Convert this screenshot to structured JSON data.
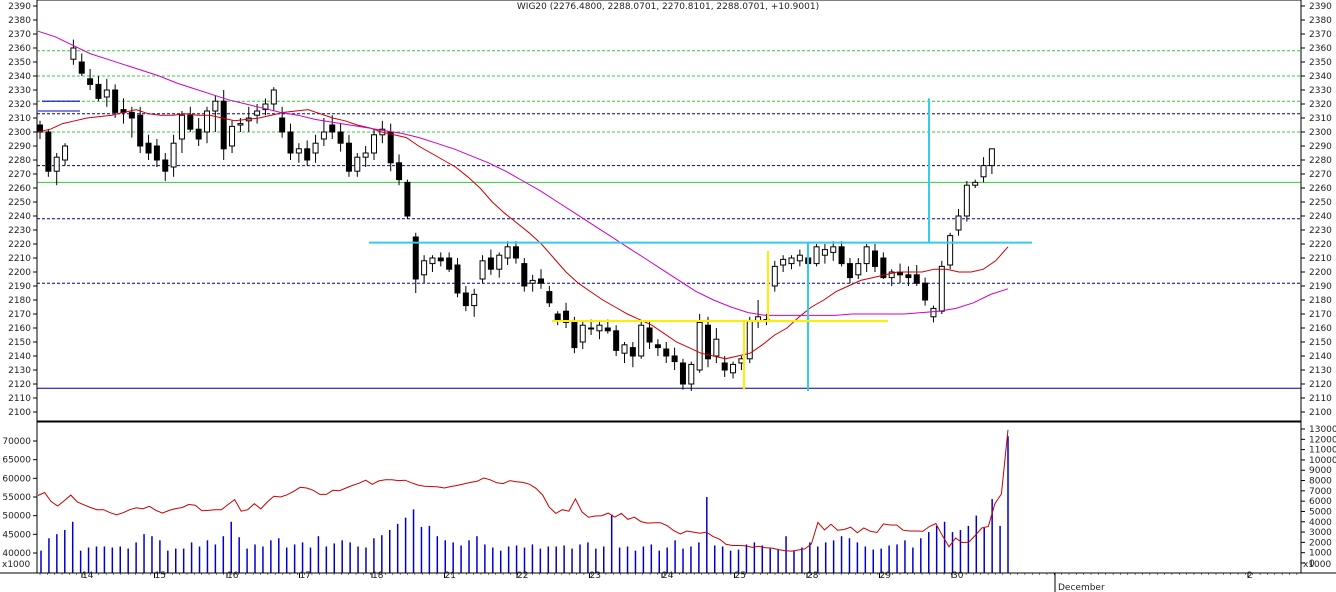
{
  "chart_data": {
    "type": "candlestick",
    "title": "WIG20 (2276.4800, 2288.0701, 2270.8101, 2288.0701, +10.9001)",
    "price_axis": {
      "ylim": [
        2096,
        2392
      ],
      "ticks": [
        2100,
        2110,
        2120,
        2130,
        2140,
        2150,
        2160,
        2170,
        2180,
        2190,
        2200,
        2210,
        2220,
        2230,
        2240,
        2250,
        2260,
        2270,
        2280,
        2290,
        2300,
        2310,
        2320,
        2330,
        2340,
        2350,
        2360,
        2370,
        2380,
        2390
      ]
    },
    "volume_axis_left": {
      "ylim": [
        36000,
        74000
      ],
      "ticks": [
        40000,
        45000,
        50000,
        55000,
        60000,
        65000,
        70000
      ],
      "unit_label": "x1000"
    },
    "volume_axis_right": {
      "ylim": [
        0,
        13500
      ],
      "ticks": [
        0,
        1000,
        2000,
        3000,
        4000,
        5000,
        6000,
        7000,
        8000,
        9000,
        10000,
        11000,
        12000,
        13000
      ],
      "unit_label": "x1000"
    },
    "x_labels": [
      "14",
      "15",
      "16",
      "17",
      "18",
      "21",
      "22",
      "23",
      "24",
      "25",
      "28",
      "29",
      "30",
      "December",
      "2"
    ],
    "candles": [
      [
        2305,
        2308,
        2295,
        2300
      ],
      [
        2300,
        2302,
        2268,
        2272
      ],
      [
        2272,
        2285,
        2262,
        2282
      ],
      [
        2280,
        2292,
        2276,
        2290
      ],
      [
        2352,
        2366,
        2348,
        2360
      ],
      [
        2350,
        2356,
        2340,
        2342
      ],
      [
        2338,
        2345,
        2330,
        2334
      ],
      [
        2334,
        2340,
        2322,
        2324
      ],
      [
        2325,
        2338,
        2318,
        2330
      ],
      [
        2330,
        2334,
        2310,
        2314
      ],
      [
        2316,
        2324,
        2306,
        2314
      ],
      [
        2314,
        2318,
        2296,
        2310
      ],
      [
        2312,
        2318,
        2285,
        2290
      ],
      [
        2292,
        2298,
        2280,
        2285
      ],
      [
        2290,
        2295,
        2275,
        2280
      ],
      [
        2280,
        2285,
        2265,
        2272
      ],
      [
        2275,
        2298,
        2268,
        2292
      ],
      [
        2295,
        2315,
        2285,
        2312
      ],
      [
        2312,
        2318,
        2300,
        2302
      ],
      [
        2302,
        2310,
        2290,
        2295
      ],
      [
        2300,
        2318,
        2292,
        2315
      ],
      [
        2315,
        2326,
        2300,
        2322
      ],
      [
        2322,
        2330,
        2280,
        2288
      ],
      [
        2290,
        2308,
        2285,
        2304
      ],
      [
        2305,
        2310,
        2300,
        2306
      ],
      [
        2308,
        2318,
        2300,
        2310
      ],
      [
        2312,
        2320,
        2306,
        2315
      ],
      [
        2316,
        2324,
        2312,
        2320
      ],
      [
        2320,
        2332,
        2315,
        2330
      ],
      [
        2310,
        2318,
        2296,
        2300
      ],
      [
        2300,
        2306,
        2280,
        2285
      ],
      [
        2285,
        2292,
        2278,
        2288
      ],
      [
        2288,
        2294,
        2276,
        2280
      ],
      [
        2285,
        2298,
        2278,
        2292
      ],
      [
        2295,
        2310,
        2290,
        2300
      ],
      [
        2305,
        2312,
        2295,
        2300
      ],
      [
        2300,
        2306,
        2286,
        2292
      ],
      [
        2292,
        2298,
        2268,
        2272
      ],
      [
        2272,
        2285,
        2268,
        2282
      ],
      [
        2282,
        2290,
        2275,
        2285
      ],
      [
        2285,
        2302,
        2280,
        2298
      ],
      [
        2298,
        2308,
        2292,
        2302
      ],
      [
        2300,
        2306,
        2272,
        2278
      ],
      [
        2278,
        2284,
        2262,
        2266
      ],
      [
        2264,
        2266,
        2238,
        2240
      ],
      [
        2225,
        2228,
        2185,
        2195
      ],
      [
        2198,
        2212,
        2192,
        2208
      ],
      [
        2206,
        2212,
        2200,
        2210
      ],
      [
        2210,
        2214,
        2204,
        2208
      ],
      [
        2210,
        2214,
        2200,
        2202
      ],
      [
        2205,
        2210,
        2182,
        2185
      ],
      [
        2185,
        2190,
        2172,
        2176
      ],
      [
        2176,
        2188,
        2168,
        2184
      ],
      [
        2195,
        2212,
        2192,
        2208
      ],
      [
        2210,
        2216,
        2198,
        2202
      ],
      [
        2202,
        2214,
        2196,
        2212
      ],
      [
        2210,
        2222,
        2205,
        2218
      ],
      [
        2218,
        2222,
        2206,
        2210
      ],
      [
        2206,
        2210,
        2186,
        2190
      ],
      [
        2192,
        2198,
        2186,
        2194
      ],
      [
        2195,
        2202,
        2188,
        2192
      ],
      [
        2186,
        2190,
        2175,
        2178
      ],
      [
        2170,
        2172,
        2162,
        2165
      ],
      [
        2172,
        2178,
        2160,
        2164
      ],
      [
        2164,
        2168,
        2142,
        2146
      ],
      [
        2150,
        2165,
        2145,
        2162
      ],
      [
        2160,
        2166,
        2155,
        2160
      ],
      [
        2158,
        2165,
        2152,
        2162
      ],
      [
        2160,
        2166,
        2156,
        2158
      ],
      [
        2158,
        2162,
        2140,
        2144
      ],
      [
        2142,
        2150,
        2135,
        2148
      ],
      [
        2146,
        2150,
        2132,
        2140
      ],
      [
        2140,
        2165,
        2138,
        2162
      ],
      [
        2160,
        2165,
        2145,
        2150
      ],
      [
        2148,
        2152,
        2140,
        2146
      ],
      [
        2145,
        2150,
        2135,
        2140
      ],
      [
        2140,
        2146,
        2130,
        2136
      ],
      [
        2135,
        2138,
        2116,
        2120
      ],
      [
        2120,
        2136,
        2115,
        2134
      ],
      [
        2130,
        2170,
        2128,
        2164
      ],
      [
        2162,
        2168,
        2132,
        2138
      ],
      [
        2140,
        2160,
        2135,
        2152
      ],
      [
        2135,
        2140,
        2125,
        2130
      ],
      [
        2128,
        2136,
        2124,
        2134
      ],
      [
        2135,
        2140,
        2130,
        2138
      ],
      [
        2138,
        2168,
        2135,
        2165
      ],
      [
        2165,
        2180,
        2160,
        2168
      ],
      [
        2166,
        2170,
        2162,
        2166
      ],
      [
        2190,
        2208,
        2186,
        2204
      ],
      [
        2205,
        2212,
        2200,
        2209
      ],
      [
        2206,
        2212,
        2202,
        2210
      ],
      [
        2208,
        2216,
        2204,
        2212
      ],
      [
        2210,
        2214,
        2202,
        2206
      ],
      [
        2206,
        2220,
        2204,
        2218
      ],
      [
        2212,
        2220,
        2206,
        2216
      ],
      [
        2214,
        2222,
        2208,
        2218
      ],
      [
        2218,
        2222,
        2204,
        2206
      ],
      [
        2206,
        2210,
        2192,
        2196
      ],
      [
        2198,
        2210,
        2195,
        2206
      ],
      [
        2206,
        2220,
        2200,
        2218
      ],
      [
        2215,
        2220,
        2200,
        2204
      ],
      [
        2210,
        2214,
        2195,
        2196
      ],
      [
        2196,
        2202,
        2190,
        2200
      ],
      [
        2200,
        2206,
        2192,
        2198
      ],
      [
        2198,
        2204,
        2190,
        2196
      ],
      [
        2198,
        2205,
        2190,
        2192
      ],
      [
        2192,
        2196,
        2176,
        2180
      ],
      [
        2168,
        2176,
        2164,
        2174
      ],
      [
        2172,
        2208,
        2170,
        2204
      ],
      [
        2205,
        2228,
        2202,
        2226
      ],
      [
        2230,
        2245,
        2226,
        2240
      ],
      [
        2240,
        2265,
        2236,
        2262
      ],
      [
        2262,
        2266,
        2260,
        2264
      ],
      [
        2268,
        2282,
        2264,
        2276
      ],
      [
        2276,
        2288,
        2270,
        2288
      ]
    ],
    "ma_short": [
      2300,
      2302,
      2306,
      2308,
      2310,
      2311,
      2312,
      2314,
      2316,
      2313,
      2312,
      2312,
      2313,
      2312,
      2312,
      2310,
      2308,
      2309,
      2310,
      2312,
      2314,
      2315,
      2316,
      2313,
      2310,
      2308,
      2305,
      2303,
      2300,
      2298,
      2296,
      2290,
      2285,
      2280,
      2275,
      2268,
      2260,
      2250,
      2242,
      2235,
      2228,
      2220,
      2210,
      2200,
      2192,
      2186,
      2180,
      2175,
      2170,
      2166,
      2162,
      2156,
      2150,
      2146,
      2142,
      2140,
      2138,
      2140,
      2142,
      2148,
      2155,
      2160,
      2168,
      2175,
      2180,
      2186,
      2190,
      2194,
      2196,
      2198,
      2200,
      2200,
      2200,
      2202,
      2202,
      2200,
      2200,
      2202,
      2208,
      2218
    ],
    "ma_long": [
      2372,
      2368,
      2362,
      2356,
      2352,
      2348,
      2344,
      2340,
      2335,
      2331,
      2327,
      2323,
      2320,
      2317,
      2314,
      2312,
      2309,
      2307,
      2305,
      2303,
      2301,
      2299,
      2296,
      2292,
      2288,
      2283,
      2278,
      2272,
      2265,
      2258,
      2250,
      2242,
      2234,
      2226,
      2218,
      2210,
      2202,
      2194,
      2186,
      2180,
      2175,
      2171,
      2169,
      2169,
      2169,
      2169,
      2169,
      2170,
      2170,
      2170,
      2170,
      2171,
      2172,
      2174,
      2178,
      2184,
      2188
    ],
    "volume": [
      1200,
      2400,
      2800,
      3200,
      4000,
      1200,
      1500,
      1600,
      1600,
      1500,
      1600,
      1400,
      2000,
      2800,
      2600,
      2200,
      1200,
      1400,
      1400,
      2000,
      1600,
      2200,
      1800,
      2600,
      4000,
      2500,
      1400,
      1800,
      1600,
      2200,
      2400,
      1500,
      1800,
      2000,
      1500,
      2600,
      1600,
      1900,
      2200,
      2000,
      1600,
      1500,
      2400,
      2700,
      3200,
      3800,
      4400,
      5200,
      3500,
      3600,
      2600,
      2200,
      2000,
      1700,
      2200,
      2600,
      1800,
      1500,
      1200,
      1600,
      1700,
      1500,
      1800,
      1400,
      1600,
      1600,
      1700,
      1400,
      1800,
      2000,
      1400,
      1600,
      4700,
      1500,
      1600,
      1200,
      1600,
      1800,
      1200,
      1500,
      2200,
      1400,
      1600,
      2000,
      6400,
      1700,
      1600,
      1200,
      1300,
      1800,
      2000,
      1700,
      1400,
      1300,
      2600,
      1200,
      1500,
      2000,
      1600,
      2000,
      2200,
      2600,
      2400,
      2000,
      1600,
      1300,
      1400,
      1700,
      1800,
      2200,
      1500,
      2400,
      3000,
      3600,
      4000,
      3000,
      3200,
      3600,
      4600,
      3400,
      6200,
      3600,
      12300
    ],
    "volume_avg": [
      55400,
      56200,
      53800,
      52600,
      54000,
      55500,
      53700,
      52900,
      52200,
      51600,
      51600,
      50800,
      50200,
      50800,
      51600,
      52100,
      51800,
      52500,
      51400,
      50700,
      51400,
      51900,
      52200,
      53000,
      52800,
      51300,
      51400,
      51600,
      51600,
      53000,
      54300,
      51200,
      51600,
      53200,
      51800,
      53700,
      55200,
      55000,
      55600,
      56500,
      57600,
      57400,
      56800,
      55700,
      55700,
      56800,
      56700,
      57400,
      58100,
      58700,
      59500,
      58400,
      59300,
      59600,
      59600,
      59400,
      59500,
      58800,
      58200,
      57900,
      57800,
      57700,
      57400,
      57800,
      58100,
      58500,
      58900,
      59200,
      60100,
      59600,
      58800,
      58600,
      59400,
      59100,
      58900,
      58400,
      57300,
      55500,
      52300,
      50600,
      51600,
      51200,
      54500,
      51000,
      49600,
      49900,
      50000,
      50700,
      49600,
      50600,
      49000,
      49600,
      48400,
      48000,
      48100,
      48100,
      47300,
      46000,
      45100,
      45900,
      45600,
      45300,
      45600,
      44400,
      43700,
      42300,
      42000,
      42000,
      41900,
      41500,
      41800,
      41400,
      41300,
      40900,
      40600,
      40500,
      40800,
      41100,
      42400,
      48200,
      46200,
      47700,
      46100,
      46300,
      46900,
      45400,
      46700,
      45800,
      45500,
      47800,
      47500,
      47500,
      46100,
      45900,
      45900,
      45800,
      47100,
      47900,
      44600,
      41700,
      44000,
      42800,
      42900,
      44700,
      46700,
      47100,
      53200,
      55800,
      73000
    ],
    "volume_x_start": 38,
    "volume_x_step": 7.35,
    "lines": {
      "support_blue": 2117,
      "resistance_green": 2264,
      "dashed_green": [
        2358,
        2340,
        2322,
        2300
      ],
      "dashed_blue": [
        2313,
        2276,
        2238,
        2192
      ]
    },
    "colors": {
      "candle_up": "#ffffff",
      "candle_down": "#000000",
      "ma_short": "#cc0000",
      "ma_long": "#cc00cc",
      "volume_bar": "#0000cc",
      "volume_avg": "#cc0000",
      "cyan": "#33ccee",
      "yellow": "#ffee00",
      "grid_green": "#33cc33",
      "grid_blue": "#000099"
    }
  }
}
